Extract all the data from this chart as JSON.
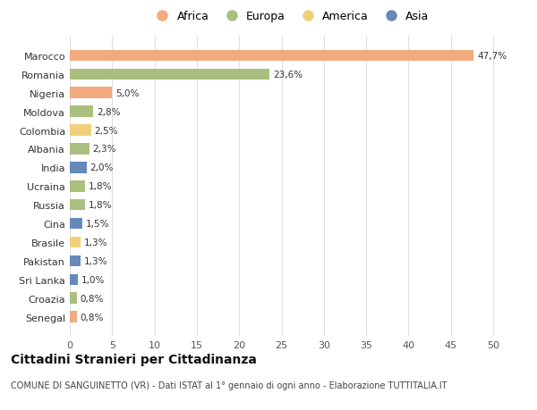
{
  "countries": [
    "Marocco",
    "Romania",
    "Nigeria",
    "Moldova",
    "Colombia",
    "Albania",
    "India",
    "Ucraina",
    "Russia",
    "Cina",
    "Brasile",
    "Pakistan",
    "Sri Lanka",
    "Croazia",
    "Senegal"
  ],
  "values": [
    47.7,
    23.6,
    5.0,
    2.8,
    2.5,
    2.3,
    2.0,
    1.8,
    1.8,
    1.5,
    1.3,
    1.3,
    1.0,
    0.8,
    0.8
  ],
  "labels": [
    "47,7%",
    "23,6%",
    "5,0%",
    "2,8%",
    "2,5%",
    "2,3%",
    "2,0%",
    "1,8%",
    "1,8%",
    "1,5%",
    "1,3%",
    "1,3%",
    "1,0%",
    "0,8%",
    "0,8%"
  ],
  "continents": [
    "Africa",
    "Europa",
    "Africa",
    "Europa",
    "America",
    "Europa",
    "Asia",
    "Europa",
    "Europa",
    "Asia",
    "America",
    "Asia",
    "Asia",
    "Europa",
    "Africa"
  ],
  "continent_colors": {
    "Africa": "#F2AA7E",
    "Europa": "#AABF7E",
    "America": "#F0D07A",
    "Asia": "#6688BB"
  },
  "legend_order": [
    "Africa",
    "Europa",
    "America",
    "Asia"
  ],
  "title": "Cittadini Stranieri per Cittadinanza",
  "subtitle": "COMUNE DI SANGUINETTO (VR) - Dati ISTAT al 1° gennaio di ogni anno - Elaborazione TUTTITALIA.IT",
  "xlim": [
    0,
    52
  ],
  "xticks": [
    0,
    5,
    10,
    15,
    20,
    25,
    30,
    35,
    40,
    45,
    50
  ],
  "background_color": "#ffffff",
  "grid_color": "#e0e0e0"
}
